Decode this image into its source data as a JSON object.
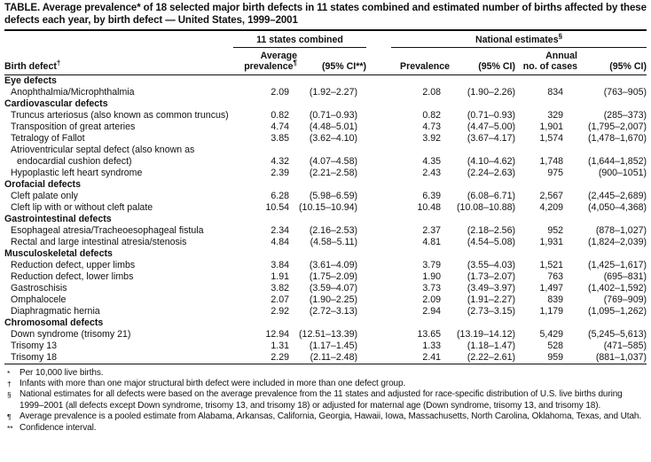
{
  "title": "TABLE. Average prevalence* of 18 selected major birth defects in 11 states combined and estimated number of births affected by these defects each year, by birth defect — United States, 1999–2001",
  "table": {
    "col_group_states": {
      "label": "11 states combined",
      "marker": ""
    },
    "col_group_national": {
      "label": "National estimates",
      "marker": "§"
    },
    "headers": {
      "birth_defect": {
        "label": "Birth defect",
        "marker": "†"
      },
      "avg_prevalence_line1": "Average",
      "avg_prevalence_line2": {
        "label": "prevalence",
        "marker": "¶"
      },
      "ci_states": "(95% CI**)",
      "prevalence": "Prevalence",
      "ci_national": "(95% CI)",
      "annual_line1": "Annual",
      "annual_line2": "no. of cases",
      "ci_annual": "(95% CI)"
    },
    "rows": [
      {
        "type": "section",
        "label": "Eye defects"
      },
      {
        "type": "data",
        "label": "Anophthalmia/Microphthalmia",
        "values": [
          "2.09",
          "(1.92–2.27)",
          "2.08",
          "(1.90–2.26)",
          "834",
          "(763–905)"
        ]
      },
      {
        "type": "section",
        "label": "Cardiovascular defects"
      },
      {
        "type": "data",
        "label": "Truncus arteriosus (also known as common truncus)",
        "values": [
          "0.82",
          "(0.71–0.93)",
          "0.82",
          "(0.71–0.93)",
          "329",
          "(285–373)"
        ]
      },
      {
        "type": "data",
        "label": "Transposition of great arteries",
        "values": [
          "4.74",
          "(4.48–5.01)",
          "4.73",
          "(4.47–5.00)",
          "1,901",
          "(1,795–2,007)"
        ]
      },
      {
        "type": "data",
        "label": "Tetralogy of Fallot",
        "values": [
          "3.85",
          "(3.62–4.10)",
          "3.92",
          "(3.67–4.17)",
          "1,574",
          "(1,478–1,670)"
        ]
      },
      {
        "type": "data",
        "label": "Atrioventricular septal defect (also known as",
        "label2": "endocardial cushion defect)",
        "values": [
          "4.32",
          "(4.07–4.58)",
          "4.35",
          "(4.10–4.62)",
          "1,748",
          "(1,644–1,852)"
        ]
      },
      {
        "type": "data",
        "label": "Hypoplastic left heart syndrome",
        "values": [
          "2.39",
          "(2.21–2.58)",
          "2.43",
          "(2.24–2.63)",
          "975",
          "(900–1051)"
        ]
      },
      {
        "type": "section",
        "label": "Orofacial defects"
      },
      {
        "type": "data",
        "label": "Cleft palate only",
        "values": [
          "6.28",
          "(5.98–6.59)",
          "6.39",
          "(6.08–6.71)",
          "2,567",
          "(2,445–2,689)"
        ]
      },
      {
        "type": "data",
        "label": "Cleft lip with or without cleft palate",
        "values": [
          "10.54",
          "(10.15–10.94)",
          "10.48",
          "(10.08–10.88)",
          "4,209",
          "(4,050–4,368)"
        ]
      },
      {
        "type": "section",
        "label": "Gastrointestinal defects"
      },
      {
        "type": "data",
        "label": "Esophageal atresia/Tracheoesophageal fistula",
        "values": [
          "2.34",
          "(2.16–2.53)",
          "2.37",
          "(2.18–2.56)",
          "952",
          "(878–1,027)"
        ]
      },
      {
        "type": "data",
        "label": "Rectal and large intestinal atresia/stenosis",
        "values": [
          "4.84",
          "(4.58–5.11)",
          "4.81",
          "(4.54–5.08)",
          "1,931",
          "(1,824–2,039)"
        ]
      },
      {
        "type": "section",
        "label": "Musculoskeletal defects"
      },
      {
        "type": "data",
        "label": "Reduction defect, upper limbs",
        "values": [
          "3.84",
          "(3.61–4.09)",
          "3.79",
          "(3.55–4.03)",
          "1,521",
          "(1,425–1,617)"
        ]
      },
      {
        "type": "data",
        "label": "Reduction defect, lower limbs",
        "values": [
          "1.91",
          "(1.75–2.09)",
          "1.90",
          "(1.73–2.07)",
          "763",
          "(695–831)"
        ]
      },
      {
        "type": "data",
        "label": "Gastroschisis",
        "values": [
          "3.82",
          "(3.59–4.07)",
          "3.73",
          "(3.49–3.97)",
          "1,497",
          "(1,402–1,592)"
        ]
      },
      {
        "type": "data",
        "label": "Omphalocele",
        "values": [
          "2.07",
          "(1.90–2.25)",
          "2.09",
          "(1.91–2.27)",
          "839",
          "(769–909)"
        ]
      },
      {
        "type": "data",
        "label": "Diaphragmatic hernia",
        "values": [
          "2.92",
          "(2.72–3.13)",
          "2.94",
          "(2.73–3.15)",
          "1,179",
          "(1,095–1,262)"
        ]
      },
      {
        "type": "section",
        "label": "Chromosomal defects"
      },
      {
        "type": "data",
        "label": "Down syndrome (trisomy 21)",
        "values": [
          "12.94",
          "(12.51–13.39)",
          "13.65",
          "(13.19–14.12)",
          "5,429",
          "(5,245–5,613)"
        ]
      },
      {
        "type": "data",
        "label": "Trisomy 13",
        "values": [
          "1.31",
          "(1.17–1.45)",
          "1.33",
          "(1.18–1.47)",
          "528",
          "(471–585)"
        ]
      },
      {
        "type": "data",
        "label": "Trisomy 18",
        "values": [
          "2.29",
          "(2.11–2.48)",
          "2.41",
          "(2.22–2.61)",
          "959",
          "(881–1,037)"
        ]
      }
    ]
  },
  "footnotes": [
    {
      "marker": "*",
      "text": "Per 10,000 live births."
    },
    {
      "marker": "†",
      "text": "Infants with more than one major structural birth defect were included in more than one defect group."
    },
    {
      "marker": "§",
      "text": "National estimates for all defects were based on the average prevalence from the 11 states and adjusted for race-specific distribution of U.S. live births during 1999–2001 (all defects except Down syndrome, trisomy 13, and trisomy 18) or adjusted for maternal age (Down syndrome, trisomy 13, and trisomy 18)."
    },
    {
      "marker": "¶",
      "text": "Average prevalence is a pooled estimate from Alabama, Arkansas, California, Georgia, Hawaii, Iowa, Massachusetts, North Carolina, Oklahoma, Texas, and Utah."
    },
    {
      "marker": "**",
      "text": "Confidence interval."
    }
  ]
}
